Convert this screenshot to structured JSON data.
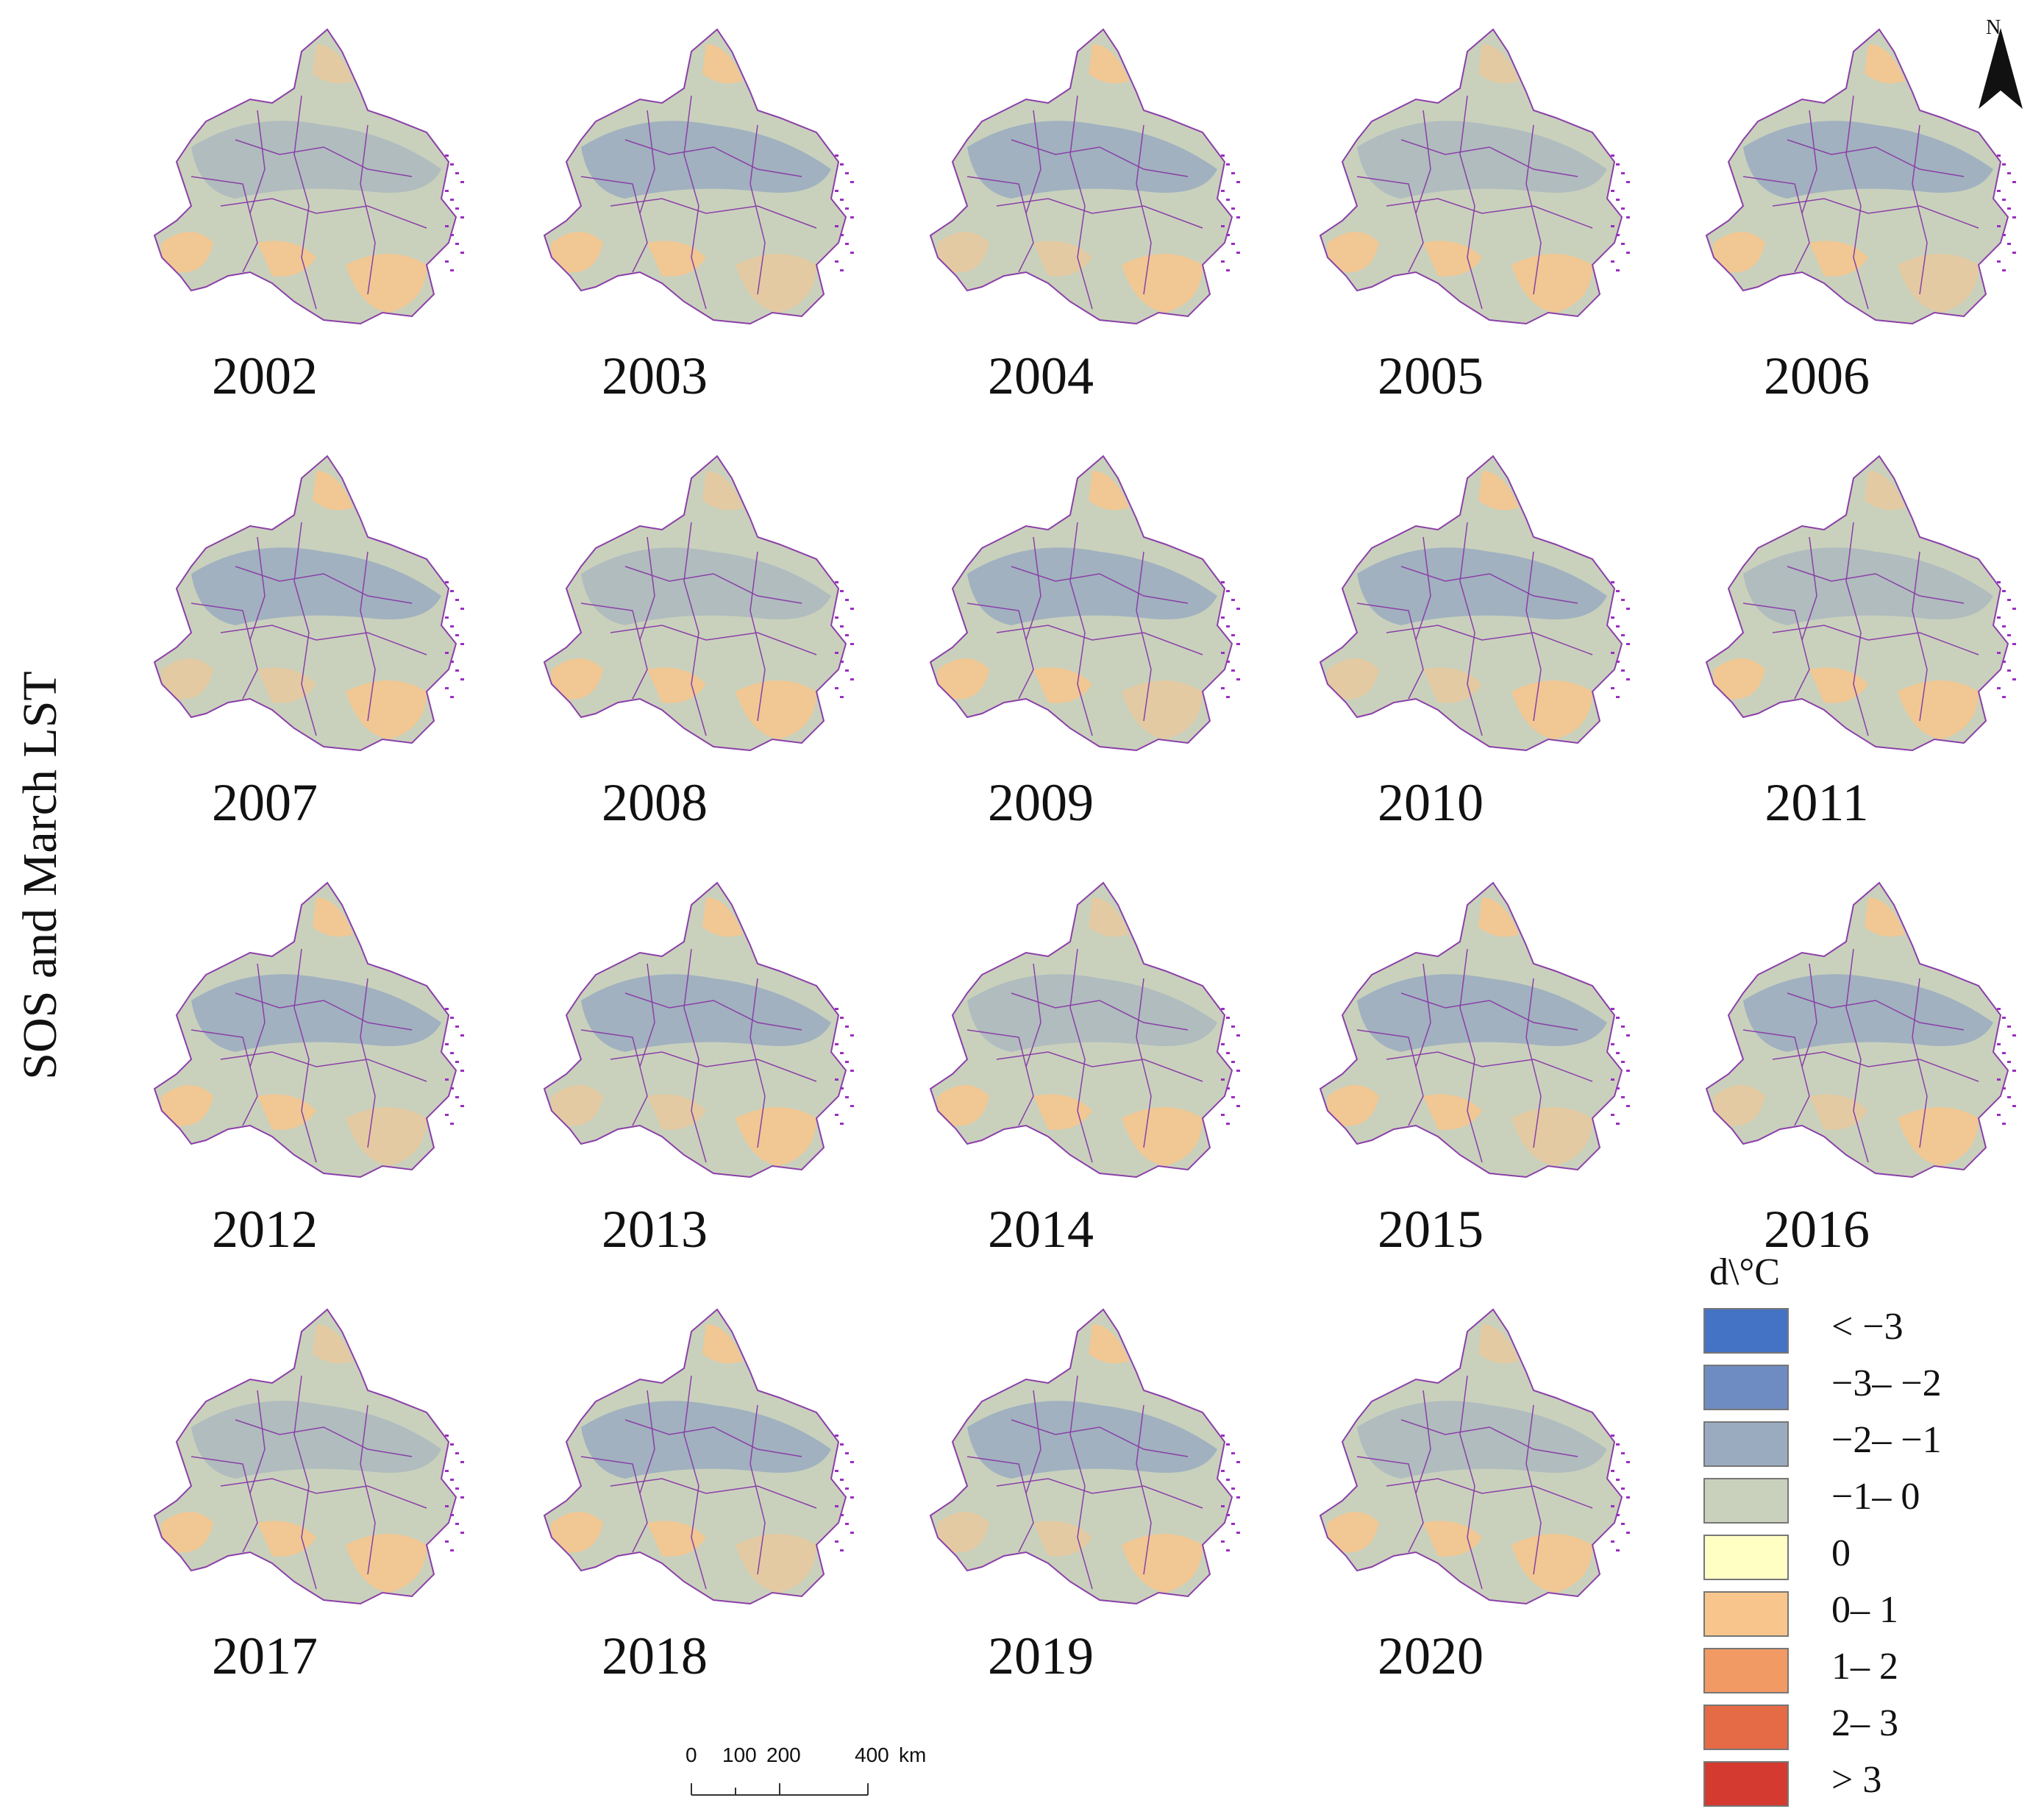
{
  "side_title": "SOS and March LST",
  "north_letter": "N",
  "years": [
    "2002",
    "2003",
    "2004",
    "2005",
    "2006",
    "2007",
    "2008",
    "2009",
    "2010",
    "2011",
    "2012",
    "2013",
    "2014",
    "2015",
    "2016",
    "2017",
    "2018",
    "2019",
    "2020"
  ],
  "legend": {
    "title": "d\\°C",
    "items": [
      {
        "label": "< −3",
        "color": "#4472c4"
      },
      {
        "label": "−3– −2",
        "color": "#6f8cc2"
      },
      {
        "label": "−2– −1",
        "color": "#9aabc0"
      },
      {
        "label": "−1– 0",
        "color": "#c9d1bd"
      },
      {
        "label": "0",
        "color": "#ffffc4"
      },
      {
        "label": "0– 1",
        "color": "#f8c58c"
      },
      {
        "label": "1– 2",
        "color": "#f29a64"
      },
      {
        "label": "2– 3",
        "color": "#e56a46"
      },
      {
        "label": "> 3",
        "color": "#d43a30"
      }
    ]
  },
  "scale_bar": {
    "ticks": [
      "0",
      "100",
      "200",
      "400"
    ],
    "unit": "km"
  },
  "colors": {
    "base": "#c9d1bd",
    "blue": "#9aabc0",
    "blue_dark": "#6f8cc2",
    "orange": "#f8c58c",
    "orange_dark": "#f29a64",
    "red": "#d43a30",
    "boundary": "#8b3fa8",
    "coast": "#9a2fc0"
  }
}
